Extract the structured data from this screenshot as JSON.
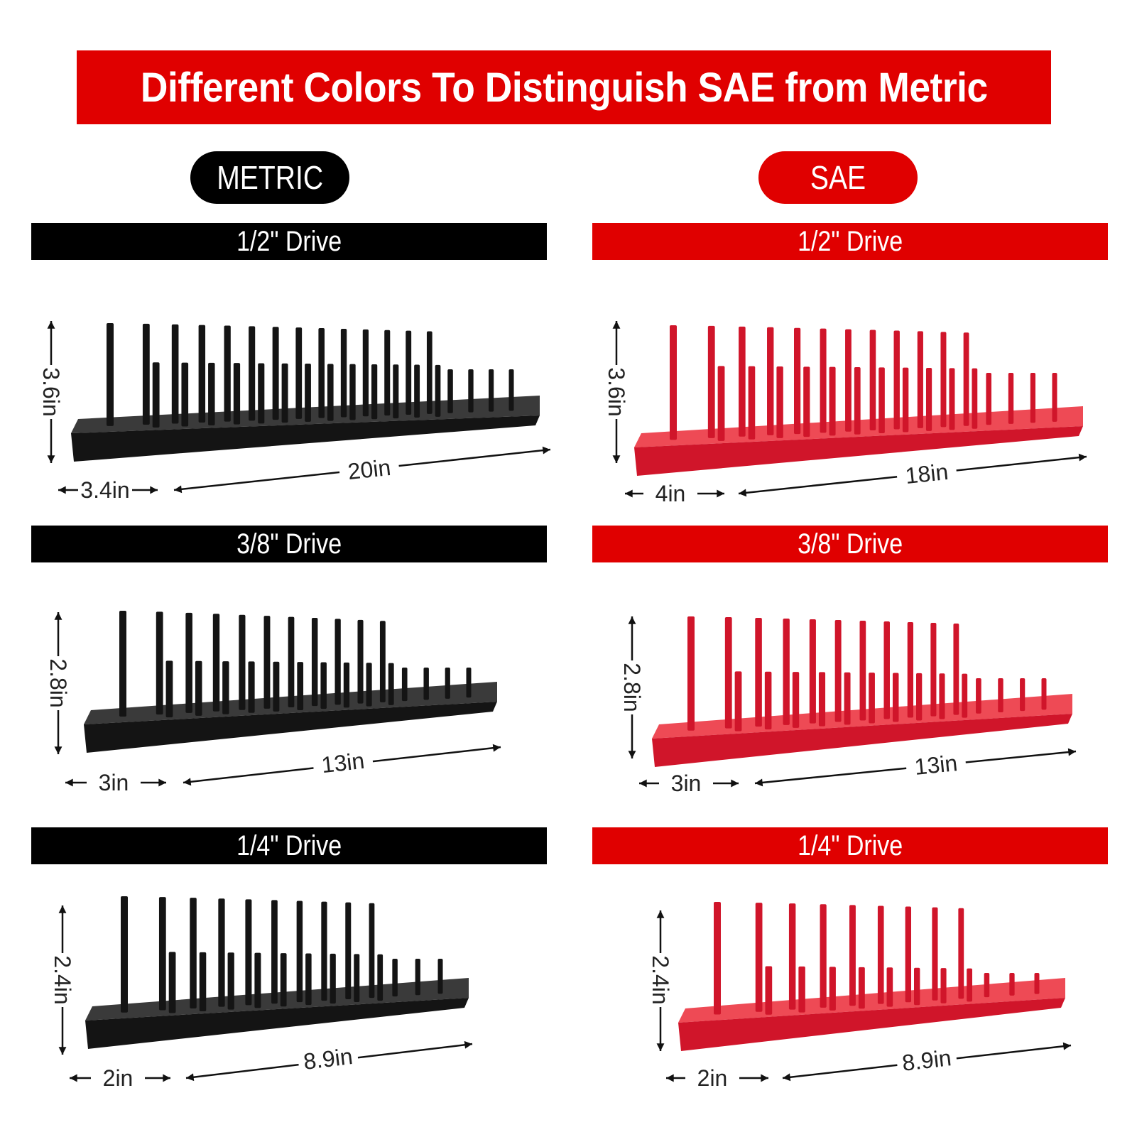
{
  "banner": {
    "title": "Different Colors To Distinguish SAE from Metric"
  },
  "colors": {
    "metric": "#000000",
    "sae": "#e00000",
    "rack_metric": "#141414",
    "rack_sae": "#d0152a"
  },
  "metric": {
    "label": "METRIC",
    "sections": [
      {
        "title": "1/2\" Drive",
        "height": "3.6in",
        "depth": "3.4in",
        "length": "20in"
      },
      {
        "title": "3/8\" Drive",
        "height": "2.8in",
        "depth": "3in",
        "length": "13in"
      },
      {
        "title": "1/4\" Drive",
        "height": "2.4in",
        "depth": "2in",
        "length": "8.9in"
      }
    ]
  },
  "sae": {
    "label": "SAE",
    "sections": [
      {
        "title": "1/2\" Drive",
        "height": "3.6in",
        "depth": "4in",
        "length": "18in"
      },
      {
        "title": "3/8\" Drive",
        "height": "2.8in",
        "depth": "3in",
        "length": "13in"
      },
      {
        "title": "1/4\" Drive",
        "height": "2.4in",
        "depth": "2in",
        "length": "8.9in"
      }
    ]
  }
}
